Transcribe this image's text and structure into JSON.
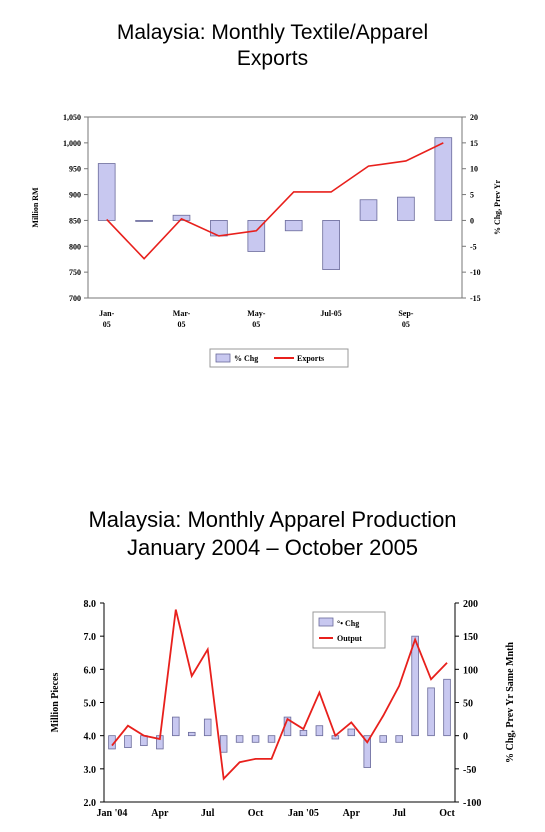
{
  "charts_meta": {
    "chart1_title": [
      "Malaysia:  Monthly Textile/Apparel",
      "Exports"
    ],
    "chart2_title": [
      "Malaysia:  Monthly Apparel Production",
      "January 2004 – October 2005"
    ]
  },
  "chart_data": [
    {
      "type": "bar",
      "title": "Malaysia:  Monthly Textile/Apparel Exports",
      "ylabel": "Million RM",
      "y2label": "% Chg, Prev Yr",
      "ylim": [
        700,
        1050
      ],
      "y2lim": [
        -15,
        20
      ],
      "y_ticks": [
        "1,050",
        "1,000",
        "950",
        "900",
        "850",
        "800",
        "750",
        "700"
      ],
      "y2_ticks": [
        "20",
        "15",
        "10",
        "5",
        "0",
        "-5",
        "-10",
        "-15"
      ],
      "x_tick_labels": [
        [
          "Jan-",
          "05"
        ],
        [
          "Mar-",
          "05"
        ],
        [
          "May-",
          "05"
        ],
        [
          "Jul-05"
        ],
        [
          "Sep-",
          "05"
        ]
      ],
      "x_tick_months": [
        1,
        3,
        5,
        7,
        9
      ],
      "months": [
        1,
        2,
        3,
        4,
        5,
        6,
        7,
        8,
        9,
        10
      ],
      "series": [
        {
          "name": "% Chg",
          "kind": "bar",
          "axis": "right",
          "color": "#c8c8f0",
          "values": [
            11,
            0,
            1,
            -3,
            -6,
            -2,
            -9.5,
            4,
            4.5,
            16
          ]
        },
        {
          "name": "Exports",
          "kind": "line",
          "axis": "left",
          "color": "#e8201c",
          "values": [
            852,
            776,
            853,
            820,
            830,
            905,
            905,
            955,
            965,
            1000
          ]
        }
      ],
      "legend": "bottom",
      "grid": false
    },
    {
      "type": "bar",
      "title": "Malaysia:  Monthly Apparel Production January 2004 – October 2005",
      "ylabel": "Million Pieces",
      "y2label": "% Chg, Prev Yr Same Mnth",
      "ylim": [
        2.0,
        8.0
      ],
      "y2lim": [
        -100,
        200
      ],
      "y_ticks": [
        "8.0",
        "7.0",
        "6.0",
        "5.0",
        "4.0",
        "3.0",
        "2.0"
      ],
      "y2_ticks": [
        "200",
        "150",
        "100",
        "50",
        "0",
        "-50",
        "-100"
      ],
      "x_tick_labels": [
        "Jan '04",
        "Apr",
        "Jul",
        "Oct",
        "Jan '05",
        "Apr",
        "Jul",
        "Oct"
      ],
      "x_tick_index": [
        0,
        3,
        6,
        9,
        12,
        15,
        18,
        21
      ],
      "series": [
        {
          "name": "% Chg",
          "kind": "bar",
          "axis": "right",
          "color": "#c8c8f0",
          "values": [
            -20,
            -18,
            -15,
            -20,
            28,
            5,
            25,
            -25,
            -10,
            -10,
            -10,
            28,
            8,
            15,
            -5,
            10,
            -48,
            -10,
            -10,
            150,
            72,
            85
          ]
        },
        {
          "name": "Output",
          "kind": "line",
          "axis": "left",
          "color": "#e8201c",
          "values": [
            3.7,
            4.3,
            4.0,
            3.9,
            7.8,
            5.8,
            6.6,
            2.7,
            3.2,
            3.3,
            3.3,
            4.5,
            4.2,
            5.3,
            4.0,
            4.4,
            3.8,
            4.6,
            5.5,
            6.9,
            5.7,
            6.2
          ]
        }
      ],
      "legend_labels": [
        "°• Chg",
        "Output"
      ],
      "legend": "top-right",
      "grid": false
    }
  ]
}
